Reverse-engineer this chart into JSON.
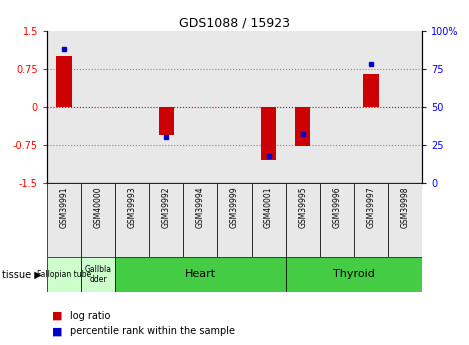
{
  "title": "GDS1088 / 15923",
  "samples": [
    "GSM39991",
    "GSM40000",
    "GSM39993",
    "GSM39992",
    "GSM39994",
    "GSM39999",
    "GSM40001",
    "GSM39995",
    "GSM39996",
    "GSM39997",
    "GSM39998"
  ],
  "log_ratios": [
    1.0,
    0.0,
    0.0,
    -0.55,
    0.0,
    0.0,
    -1.05,
    -0.78,
    0.0,
    0.65,
    0.0
  ],
  "percentile_ranks": [
    88,
    0,
    0,
    30,
    0,
    0,
    18,
    32,
    0,
    78,
    0
  ],
  "ylim": [
    -1.5,
    1.5
  ],
  "y2lim": [
    0,
    100
  ],
  "yticks": [
    -1.5,
    -0.75,
    0,
    0.75,
    1.5
  ],
  "y2ticks": [
    0,
    25,
    50,
    75,
    100
  ],
  "ytick_labels": [
    "-1.5",
    "-0.75",
    "0",
    "0.75",
    "1.5"
  ],
  "y2tick_labels": [
    "0",
    "25",
    "50",
    "75",
    "100%"
  ],
  "bar_color": "#cc0000",
  "dot_color": "#0000cc",
  "zero_line_color": "#cc0000",
  "dotted_line_color": "#888888",
  "tissue_groups": [
    {
      "label": "Fallopian tube",
      "start": 0,
      "end": 1,
      "color": "#ccffcc"
    },
    {
      "label": "Gallbla\ndder",
      "start": 1,
      "end": 2,
      "color": "#ccffcc"
    },
    {
      "label": "Heart",
      "start": 2,
      "end": 7,
      "color": "#44cc44"
    },
    {
      "label": "Thyroid",
      "start": 7,
      "end": 11,
      "color": "#44cc44"
    }
  ],
  "tissue_label": "tissue",
  "legend_log_ratio": "log ratio",
  "legend_percentile": "percentile rank within the sample",
  "bar_width": 0.45,
  "col_bg": "#e8e8e8"
}
